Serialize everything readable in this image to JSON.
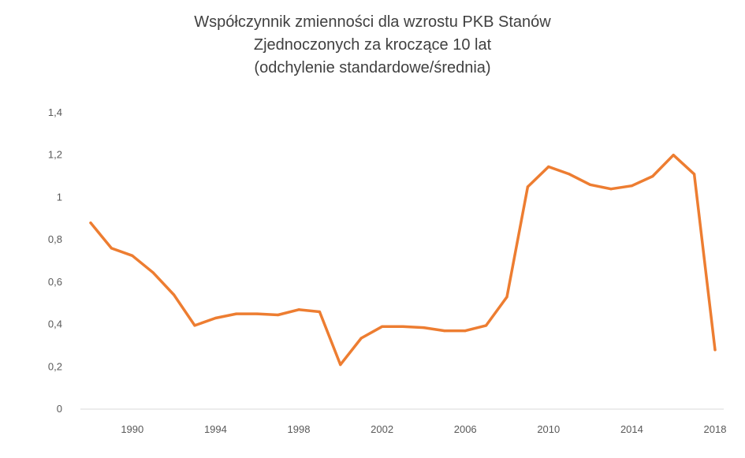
{
  "chart_data": {
    "type": "line",
    "title_lines": [
      "Współczynnik zmienności dla wzrostu PKB Stanów",
      "Zjednoczonych za kroczące 10 lat",
      "(odchylenie standardowe/średnia)"
    ],
    "xlabel": "",
    "ylabel": "",
    "ylim": [
      0,
      1.4
    ],
    "xlim": [
      1988,
      2018
    ],
    "y_ticks": [
      0,
      0.2,
      0.4,
      0.6,
      0.8,
      1,
      1.2,
      1.4
    ],
    "y_tick_labels": [
      "0",
      "0,2",
      "0,4",
      "0,6",
      "0,8",
      "1",
      "1,2",
      "1,4"
    ],
    "x_ticks": [
      1990,
      1994,
      1998,
      2002,
      2006,
      2010,
      2014,
      2018
    ],
    "x_tick_labels": [
      "1990",
      "1994",
      "1998",
      "2002",
      "2006",
      "2010",
      "2014",
      "2018"
    ],
    "grid": false,
    "legend": "none",
    "color": "#ED7D31",
    "series": [
      {
        "x": [
          1988,
          1989,
          1990,
          1991,
          1992,
          1993,
          1994,
          1995,
          1996,
          1997,
          1998,
          1999,
          2000,
          2001,
          2002,
          2003,
          2004,
          2005,
          2006,
          2007,
          2008,
          2009,
          2010,
          2011,
          2012,
          2013,
          2014,
          2015,
          2016,
          2017,
          2018
        ],
        "values": [
          0.88,
          0.76,
          0.725,
          0.645,
          0.54,
          0.395,
          0.43,
          0.45,
          0.45,
          0.445,
          0.47,
          0.46,
          0.21,
          0.335,
          0.39,
          0.39,
          0.385,
          0.37,
          0.37,
          0.395,
          0.53,
          1.05,
          1.145,
          1.11,
          1.06,
          1.04,
          1.055,
          1.1,
          1.2,
          1.11,
          0.28
        ]
      }
    ]
  }
}
